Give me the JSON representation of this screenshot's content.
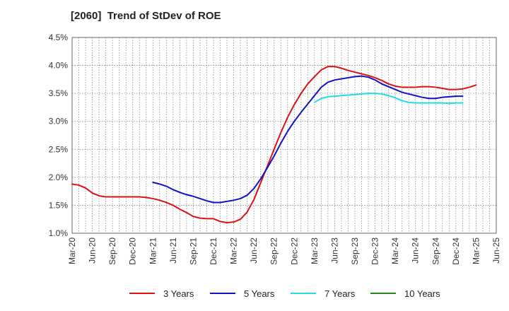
{
  "title": "[2060]  Trend of StDev of ROE",
  "chart_data": {
    "type": "line",
    "title": "[2060]  Trend of StDev of ROE",
    "xlabel": "",
    "ylabel": "",
    "ylim": [
      1.0,
      4.5
    ],
    "yticks": [
      "1.0%",
      "1.5%",
      "2.0%",
      "2.5%",
      "3.0%",
      "3.5%",
      "4.0%",
      "4.5%"
    ],
    "x_tick_labels": [
      "Mar-20",
      "Jun-20",
      "Sep-20",
      "Dec-20",
      "Mar-21",
      "Jun-21",
      "Sep-21",
      "Dec-21",
      "Mar-22",
      "Jun-22",
      "Sep-22",
      "Dec-22",
      "Mar-23",
      "Jun-23",
      "Sep-23",
      "Dec-23",
      "Mar-24",
      "Jun-24",
      "Sep-24",
      "Dec-24",
      "Mar-25",
      "Jun-25"
    ],
    "grid": true,
    "legend_position": "bottom",
    "series": [
      {
        "name": "3 Years",
        "color": "#dd1111",
        "start_month": 0,
        "values": [
          1.88,
          1.86,
          1.81,
          1.72,
          1.67,
          1.65,
          1.65,
          1.65,
          1.65,
          1.65,
          1.65,
          1.64,
          1.62,
          1.59,
          1.55,
          1.5,
          1.43,
          1.37,
          1.3,
          1.27,
          1.26,
          1.26,
          1.21,
          1.19,
          1.2,
          1.25,
          1.38,
          1.6,
          1.9,
          2.2,
          2.5,
          2.8,
          3.07,
          3.3,
          3.5,
          3.67,
          3.8,
          3.92,
          3.98,
          3.98,
          3.95,
          3.91,
          3.88,
          3.85,
          3.82,
          3.78,
          3.73,
          3.67,
          3.63,
          3.61,
          3.61,
          3.61,
          3.62,
          3.62,
          3.61,
          3.59,
          3.57,
          3.57,
          3.58,
          3.61,
          3.65
        ]
      },
      {
        "name": "5 Years",
        "color": "#1111cc",
        "start_month": 12,
        "values": [
          1.91,
          1.88,
          1.84,
          1.78,
          1.73,
          1.69,
          1.66,
          1.62,
          1.58,
          1.55,
          1.55,
          1.57,
          1.59,
          1.62,
          1.68,
          1.8,
          1.97,
          2.17,
          2.38,
          2.61,
          2.82,
          3.0,
          3.16,
          3.31,
          3.46,
          3.61,
          3.7,
          3.74,
          3.76,
          3.78,
          3.8,
          3.81,
          3.79,
          3.74,
          3.67,
          3.62,
          3.57,
          3.52,
          3.49,
          3.46,
          3.43,
          3.41,
          3.41,
          3.43,
          3.44,
          3.45,
          3.45
        ]
      },
      {
        "name": "7 Years",
        "color": "#22dddd",
        "start_month": 36,
        "values": [
          3.34,
          3.41,
          3.44,
          3.45,
          3.46,
          3.47,
          3.48,
          3.49,
          3.5,
          3.5,
          3.49,
          3.46,
          3.42,
          3.37,
          3.34,
          3.33,
          3.33,
          3.33,
          3.33,
          3.33,
          3.32,
          3.33,
          3.33
        ]
      },
      {
        "name": "10 Years",
        "color": "#228822",
        "start_month": 0,
        "values": []
      }
    ]
  },
  "legend": [
    {
      "label": "3 Years",
      "color": "#dd1111"
    },
    {
      "label": "5 Years",
      "color": "#1111cc"
    },
    {
      "label": "7 Years",
      "color": "#22dddd"
    },
    {
      "label": "10 Years",
      "color": "#228822"
    }
  ]
}
